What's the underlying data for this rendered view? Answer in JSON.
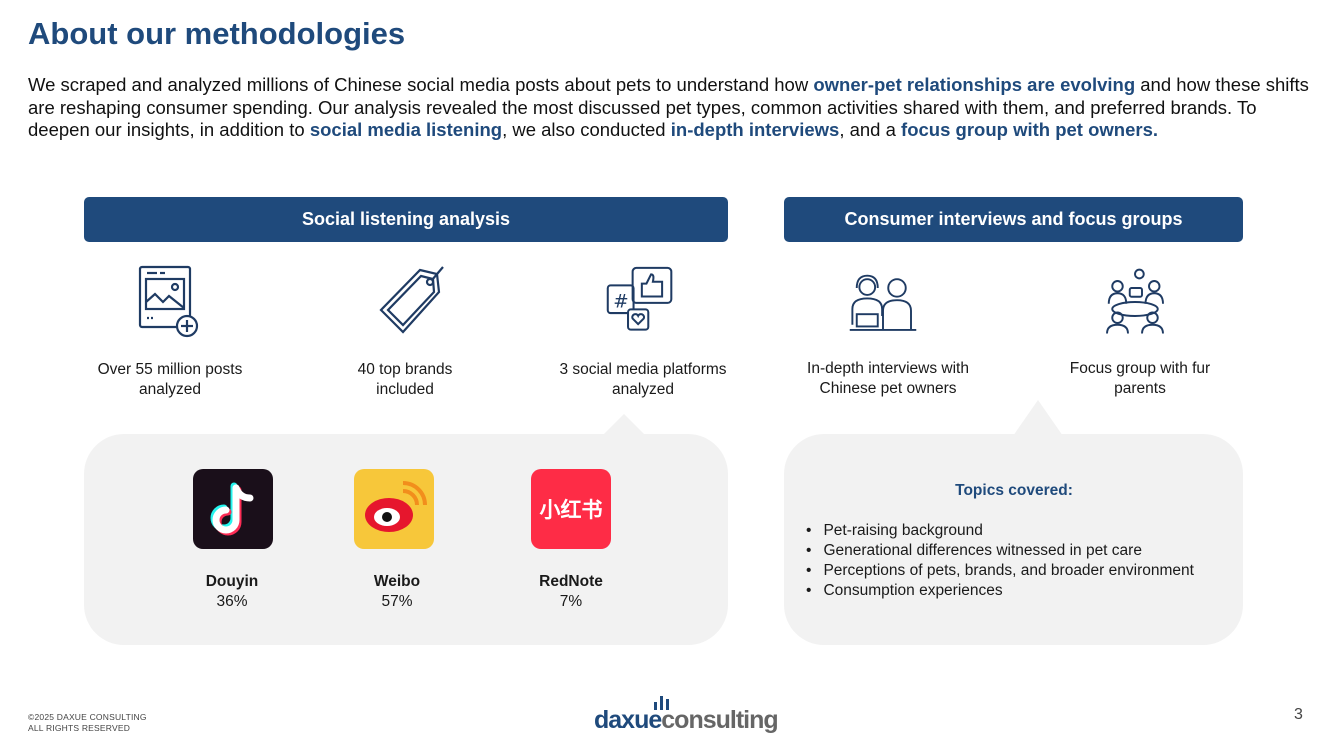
{
  "title": "About our methodologies",
  "intro": {
    "p1": "We scraped and analyzed millions of Chinese social media posts about pets to understand how ",
    "h1": "owner-pet relationships are evolving",
    "p2": " and how these shifts are reshaping consumer spending. Our analysis revealed the most discussed pet types, common activities shared with them, and preferred brands. To deepen our insights, in addition to ",
    "h2": "social media listening",
    "p3": ", we also conducted ",
    "h3": "in-depth interviews",
    "p4": ", and a ",
    "h4": "focus group with pet owners."
  },
  "social": {
    "header": "Social listening analysis",
    "stats": [
      {
        "icon": "image-post-icon",
        "label": "Over 55 million posts analyzed"
      },
      {
        "icon": "price-tag-icon",
        "label": "40 top brands included"
      },
      {
        "icon": "social-media-icon",
        "label": "3 social media platforms analyzed"
      }
    ],
    "platforms": [
      {
        "name": "Douyin",
        "value": "36%",
        "color": "#1a0f1a",
        "icon": "douyin-logo"
      },
      {
        "name": "Weibo",
        "value": "57%",
        "color": "#f7c73a",
        "icon": "weibo-logo"
      },
      {
        "name": "RedNote",
        "value": "7%",
        "color": "#fe2c46",
        "icon": "rednote-logo",
        "logo_text": "小红书"
      }
    ]
  },
  "consumer": {
    "header": "Consumer interviews and focus groups",
    "stats": [
      {
        "icon": "interview-icon",
        "label": "In-depth interviews with Chinese pet owners"
      },
      {
        "icon": "focus-group-icon",
        "label": "Focus group with fur parents"
      }
    ],
    "topics_title": "Topics covered:",
    "topics": [
      "Pet-raising background",
      "Generational differences witnessed in pet care",
      "Perceptions of pets, brands, and broader environment",
      "Consumption experiences"
    ]
  },
  "footer": {
    "copyright": "©2025 DAXUE CONSULTING",
    "rights": "ALL RIGHTS RESERVED",
    "logo_a": "daxue",
    "logo_b": "consulting",
    "page": "3"
  },
  "colors": {
    "brand": "#1f4a7c",
    "panel": "#f2f2f2"
  }
}
